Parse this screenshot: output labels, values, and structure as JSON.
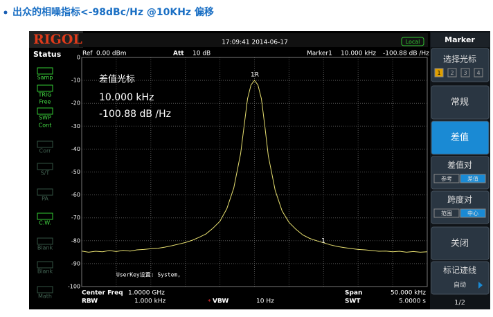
{
  "heading": "出众的相噪指标<-98dBc/Hz @10KHz 偏移",
  "screen": {
    "logo": "RIGOL",
    "time": "17:09:41 2014-06-17",
    "local": "Local",
    "ref_label": "Ref",
    "ref_value": "0.00 dBm",
    "att_label": "Att",
    "att_value": "10 dB",
    "marker_label": "Marker1",
    "marker_freq": "10.000 kHz",
    "marker_level": "-100.88 dB /Hz",
    "readout": [
      "差值光标",
      "10.000 kHz",
      "-100.88 dB /Hz"
    ],
    "marker_tags": [
      "1R",
      "1"
    ],
    "userkey": "UserKey设置:  System,",
    "bottom": {
      "center_label": "Center Freq",
      "center_value": "1.0000 GHz",
      "span_label": "Span",
      "span_value": "50.000 kHz",
      "rbw_label": "RBW",
      "rbw_value": "1.000 kHz",
      "vbw_label": "VBW",
      "vbw_value": "10 Hz",
      "swt_label": "SWT",
      "swt_value": "5.0000 s"
    },
    "status": {
      "title": "Status",
      "items": [
        "Samp",
        "TRIG",
        "Free",
        "SWP",
        "Cont",
        "Corr",
        "S/T",
        "PA",
        "C.W.",
        "Blank",
        "Blank",
        "Math"
      ]
    },
    "menu": {
      "title": "Marker",
      "select": "选择光标",
      "numbers": [
        "1",
        "2",
        "3",
        "4"
      ],
      "normal": "常规",
      "delta": "差值",
      "delta_pair": "差值对",
      "delta_pair_opts": [
        "参考",
        "差值"
      ],
      "span_pair": "跨度对",
      "span_pair_opts": [
        "范围",
        "中心"
      ],
      "off": "关闭",
      "mark_trace": "标记迹线",
      "auto": "自动",
      "page": "1/2"
    }
  },
  "chart_data": {
    "type": "line",
    "color": "#e8e070",
    "x": [
      -25,
      -24,
      -23,
      -22,
      -21,
      -20,
      -19,
      -18,
      -17,
      -16,
      -15,
      -14,
      -13,
      -12,
      -11,
      -10,
      -9,
      -8,
      -7,
      -6,
      -5,
      -4,
      -3,
      -2,
      -1.5,
      -1,
      -0.5,
      0,
      0.5,
      1,
      1.5,
      2,
      3,
      4,
      5,
      6,
      7,
      8,
      9,
      10,
      11,
      12,
      13,
      14,
      15,
      16,
      17,
      18,
      19,
      20,
      21,
      22,
      23,
      24,
      25
    ],
    "values": [
      -84.5,
      -85,
      -84.6,
      -84.8,
      -84.3,
      -84.7,
      -84.2,
      -84.5,
      -84,
      -83.8,
      -83.5,
      -83.3,
      -82.8,
      -82.2,
      -81.5,
      -80.8,
      -79.8,
      -78.5,
      -77,
      -74.5,
      -71.5,
      -66,
      -57,
      -42,
      -30,
      -18,
      -12,
      -10,
      -12,
      -18,
      -30,
      -43,
      -58,
      -67,
      -72,
      -75,
      -77.5,
      -79,
      -80,
      -80.9,
      -81.8,
      -82.5,
      -83,
      -83.4,
      -83.8,
      -84,
      -84.3,
      -84.6,
      -84.5,
      -84.8,
      -84.6,
      -85,
      -84.7,
      -85,
      -84.8
    ],
    "xlim": [
      -25,
      25
    ],
    "ylim": [
      -100,
      0
    ],
    "yticks": [
      0,
      -10,
      -20,
      -30,
      -40,
      -50,
      -60,
      -70,
      -80,
      -90,
      -100
    ],
    "grid": true
  }
}
